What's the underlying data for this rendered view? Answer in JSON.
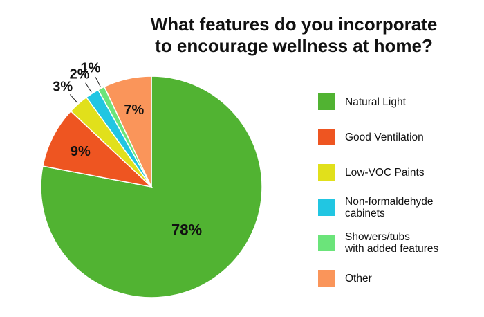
{
  "title_lines": [
    "What features do you incorporate",
    "to encourage wellness at home?"
  ],
  "chart_data": {
    "type": "pie",
    "title": "What features do you incorporate to encourage wellness at home?",
    "start_angle_deg": 0,
    "direction": "clockwise",
    "legend_position": "right",
    "slices": [
      {
        "label": "Natural Light",
        "value": 78,
        "value_label": "78%",
        "color": "#51b332",
        "label_position": "inside"
      },
      {
        "label": "Good Ventilation",
        "value": 9,
        "value_label": "9%",
        "color": "#ee5521",
        "label_position": "inside"
      },
      {
        "label": "Low-VOC Paints",
        "value": 3,
        "value_label": "3%",
        "color": "#e1e01b",
        "label_position": "outside"
      },
      {
        "label": "Non-formaldehyde\ncabinets",
        "value": 2,
        "value_label": "2%",
        "color": "#21c6e2",
        "label_position": "outside"
      },
      {
        "label": "Showers/tubs\nwith added features",
        "value": 1,
        "value_label": "1%",
        "color": "#6be47a",
        "label_position": "outside"
      },
      {
        "label": "Other",
        "value": 7,
        "value_label": "7%",
        "color": "#fa955a",
        "label_position": "inside"
      }
    ]
  }
}
